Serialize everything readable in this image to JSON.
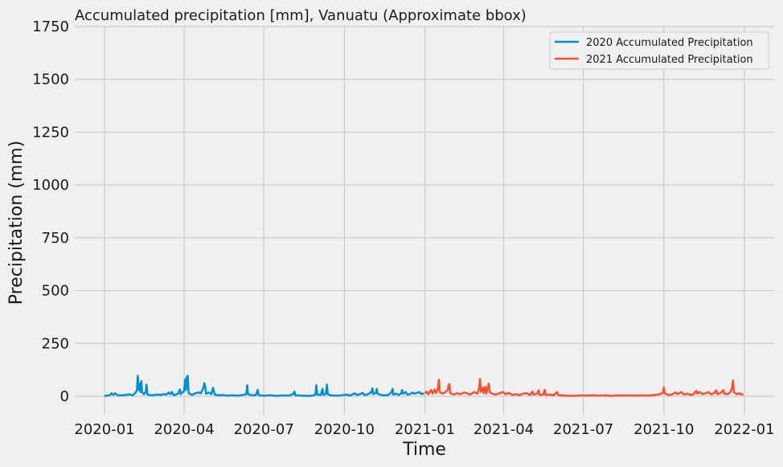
{
  "chart_data": {
    "type": "line",
    "title": "Accumulated precipitation [mm], Vanuatu (Approximate bbox)",
    "xlabel": "Time",
    "ylabel": "Precipitation (mm)",
    "ylim": [
      -87.5,
      1750
    ],
    "xlim": [
      "2019-11-28",
      "2022-02-04"
    ],
    "x_ticks": [
      "2020-01",
      "2020-04",
      "2020-07",
      "2020-10",
      "2021-01",
      "2021-04",
      "2021-07",
      "2021-10",
      "2022-01"
    ],
    "y_ticks": [
      0,
      250,
      500,
      750,
      1000,
      1250,
      1500,
      1750
    ],
    "grid": true,
    "legend_position": "top-right",
    "series": [
      {
        "name": "2020 Accumulated Precipitation",
        "color": "#008fd5",
        "points": [
          [
            "2020-01-01",
            2
          ],
          [
            "2020-01-04",
            3
          ],
          [
            "2020-01-07",
            5
          ],
          [
            "2020-01-09",
            14
          ],
          [
            "2020-01-11",
            6
          ],
          [
            "2020-01-13",
            14
          ],
          [
            "2020-01-16",
            5
          ],
          [
            "2020-01-20",
            4
          ],
          [
            "2020-01-25",
            6
          ],
          [
            "2020-01-29",
            9
          ],
          [
            "2020-02-02",
            5
          ],
          [
            "2020-02-05",
            14
          ],
          [
            "2020-02-07",
            28
          ],
          [
            "2020-02-08",
            97
          ],
          [
            "2020-02-09",
            30
          ],
          [
            "2020-02-10",
            60
          ],
          [
            "2020-02-11",
            20
          ],
          [
            "2020-02-12",
            72
          ],
          [
            "2020-02-13",
            18
          ],
          [
            "2020-02-15",
            10
          ],
          [
            "2020-02-17",
            20
          ],
          [
            "2020-02-18",
            55
          ],
          [
            "2020-02-19",
            8
          ],
          [
            "2020-02-23",
            4
          ],
          [
            "2020-02-27",
            6
          ],
          [
            "2020-03-02",
            8
          ],
          [
            "2020-03-05",
            6
          ],
          [
            "2020-03-08",
            10
          ],
          [
            "2020-03-12",
            8
          ],
          [
            "2020-03-14",
            18
          ],
          [
            "2020-03-16",
            10
          ],
          [
            "2020-03-18",
            20
          ],
          [
            "2020-03-20",
            4
          ],
          [
            "2020-03-25",
            12
          ],
          [
            "2020-03-27",
            32
          ],
          [
            "2020-03-28",
            10
          ],
          [
            "2020-03-30",
            18
          ],
          [
            "2020-04-01",
            26
          ],
          [
            "2020-04-02",
            80
          ],
          [
            "2020-04-03",
            30
          ],
          [
            "2020-04-04",
            92
          ],
          [
            "2020-04-05",
            97
          ],
          [
            "2020-04-06",
            15
          ],
          [
            "2020-04-10",
            6
          ],
          [
            "2020-04-14",
            14
          ],
          [
            "2020-04-17",
            18
          ],
          [
            "2020-04-20",
            14
          ],
          [
            "2020-04-23",
            40
          ],
          [
            "2020-04-24",
            62
          ],
          [
            "2020-04-25",
            48
          ],
          [
            "2020-04-26",
            12
          ],
          [
            "2020-04-29",
            18
          ],
          [
            "2020-05-02",
            10
          ],
          [
            "2020-05-04",
            40
          ],
          [
            "2020-05-06",
            8
          ],
          [
            "2020-05-10",
            4
          ],
          [
            "2020-05-15",
            6
          ],
          [
            "2020-05-20",
            3
          ],
          [
            "2020-05-26",
            5
          ],
          [
            "2020-06-01",
            3
          ],
          [
            "2020-06-07",
            6
          ],
          [
            "2020-06-11",
            10
          ],
          [
            "2020-06-12",
            52
          ],
          [
            "2020-06-13",
            10
          ],
          [
            "2020-06-18",
            4
          ],
          [
            "2020-06-22",
            6
          ],
          [
            "2020-06-24",
            30
          ],
          [
            "2020-06-25",
            5
          ],
          [
            "2020-07-02",
            3
          ],
          [
            "2020-07-09",
            5
          ],
          [
            "2020-07-16",
            2
          ],
          [
            "2020-07-23",
            4
          ],
          [
            "2020-07-30",
            3
          ],
          [
            "2020-08-04",
            12
          ],
          [
            "2020-08-05",
            22
          ],
          [
            "2020-08-06",
            4
          ],
          [
            "2020-08-14",
            3
          ],
          [
            "2020-08-22",
            2
          ],
          [
            "2020-08-27",
            4
          ],
          [
            "2020-08-29",
            10
          ],
          [
            "2020-08-30",
            52
          ],
          [
            "2020-08-31",
            8
          ],
          [
            "2020-09-04",
            6
          ],
          [
            "2020-09-06",
            35
          ],
          [
            "2020-09-07",
            6
          ],
          [
            "2020-09-10",
            12
          ],
          [
            "2020-09-11",
            55
          ],
          [
            "2020-09-12",
            10
          ],
          [
            "2020-09-16",
            4
          ],
          [
            "2020-09-22",
            3
          ],
          [
            "2020-09-28",
            5
          ],
          [
            "2020-10-04",
            8
          ],
          [
            "2020-10-07",
            3
          ],
          [
            "2020-10-10",
            8
          ],
          [
            "2020-10-13",
            14
          ],
          [
            "2020-10-15",
            6
          ],
          [
            "2020-10-19",
            10
          ],
          [
            "2020-10-22",
            16
          ],
          [
            "2020-10-24",
            5
          ],
          [
            "2020-10-28",
            10
          ],
          [
            "2020-11-01",
            20
          ],
          [
            "2020-11-02",
            38
          ],
          [
            "2020-11-03",
            10
          ],
          [
            "2020-11-06",
            16
          ],
          [
            "2020-11-07",
            35
          ],
          [
            "2020-11-08",
            12
          ],
          [
            "2020-11-12",
            6
          ],
          [
            "2020-11-16",
            4
          ],
          [
            "2020-11-20",
            6
          ],
          [
            "2020-11-24",
            20
          ],
          [
            "2020-11-25",
            35
          ],
          [
            "2020-11-26",
            8
          ],
          [
            "2020-11-29",
            12
          ],
          [
            "2020-12-02",
            6
          ],
          [
            "2020-12-05",
            14
          ],
          [
            "2020-12-06",
            30
          ],
          [
            "2020-12-07",
            12
          ],
          [
            "2020-12-10",
            20
          ],
          [
            "2020-12-12",
            8
          ],
          [
            "2020-12-15",
            10
          ],
          [
            "2020-12-18",
            18
          ],
          [
            "2020-12-20",
            12
          ],
          [
            "2020-12-23",
            16
          ],
          [
            "2020-12-26",
            20
          ],
          [
            "2020-12-28",
            10
          ],
          [
            "2020-12-31",
            14
          ]
        ]
      },
      {
        "name": "2021 Accumulated Precipitation",
        "color": "#fc4f30",
        "points": [
          [
            "2021-01-01",
            14
          ],
          [
            "2021-01-03",
            22
          ],
          [
            "2021-01-05",
            10
          ],
          [
            "2021-01-08",
            30
          ],
          [
            "2021-01-10",
            12
          ],
          [
            "2021-01-12",
            32
          ],
          [
            "2021-01-14",
            15
          ],
          [
            "2021-01-16",
            40
          ],
          [
            "2021-01-17",
            78
          ],
          [
            "2021-01-18",
            20
          ],
          [
            "2021-01-21",
            12
          ],
          [
            "2021-01-24",
            18
          ],
          [
            "2021-01-27",
            30
          ],
          [
            "2021-01-28",
            50
          ],
          [
            "2021-01-29",
            58
          ],
          [
            "2021-01-30",
            15
          ],
          [
            "2021-02-03",
            8
          ],
          [
            "2021-02-07",
            14
          ],
          [
            "2021-02-11",
            10
          ],
          [
            "2021-02-15",
            18
          ],
          [
            "2021-02-18",
            14
          ],
          [
            "2021-02-22",
            8
          ],
          [
            "2021-02-26",
            20
          ],
          [
            "2021-03-02",
            12
          ],
          [
            "2021-03-04",
            40
          ],
          [
            "2021-03-05",
            82
          ],
          [
            "2021-03-06",
            20
          ],
          [
            "2021-03-08",
            42
          ],
          [
            "2021-03-09",
            15
          ],
          [
            "2021-03-11",
            45
          ],
          [
            "2021-03-12",
            12
          ],
          [
            "2021-03-15",
            60
          ],
          [
            "2021-03-16",
            20
          ],
          [
            "2021-03-19",
            12
          ],
          [
            "2021-03-23",
            8
          ],
          [
            "2021-03-27",
            14
          ],
          [
            "2021-03-31",
            20
          ],
          [
            "2021-04-03",
            10
          ],
          [
            "2021-04-07",
            16
          ],
          [
            "2021-04-11",
            6
          ],
          [
            "2021-04-15",
            10
          ],
          [
            "2021-04-19",
            5
          ],
          [
            "2021-04-23",
            12
          ],
          [
            "2021-04-27",
            14
          ],
          [
            "2021-05-01",
            6
          ],
          [
            "2021-05-04",
            22
          ],
          [
            "2021-05-05",
            8
          ],
          [
            "2021-05-09",
            12
          ],
          [
            "2021-05-11",
            28
          ],
          [
            "2021-05-12",
            6
          ],
          [
            "2021-05-16",
            8
          ],
          [
            "2021-05-18",
            30
          ],
          [
            "2021-05-19",
            6
          ],
          [
            "2021-05-24",
            8
          ],
          [
            "2021-05-28",
            4
          ],
          [
            "2021-06-01",
            20
          ],
          [
            "2021-06-02",
            6
          ],
          [
            "2021-06-10",
            3
          ],
          [
            "2021-06-20",
            2
          ],
          [
            "2021-06-30",
            4
          ],
          [
            "2021-07-05",
            3
          ],
          [
            "2021-07-12",
            5
          ],
          [
            "2021-07-19",
            3
          ],
          [
            "2021-07-26",
            4
          ],
          [
            "2021-08-02",
            2
          ],
          [
            "2021-08-09",
            4
          ],
          [
            "2021-08-16",
            3
          ],
          [
            "2021-08-23",
            4
          ],
          [
            "2021-08-30",
            3
          ],
          [
            "2021-09-06",
            4
          ],
          [
            "2021-09-13",
            3
          ],
          [
            "2021-09-20",
            6
          ],
          [
            "2021-09-27",
            10
          ],
          [
            "2021-09-30",
            18
          ],
          [
            "2021-10-01",
            42
          ],
          [
            "2021-10-02",
            14
          ],
          [
            "2021-10-06",
            6
          ],
          [
            "2021-10-10",
            8
          ],
          [
            "2021-10-14",
            18
          ],
          [
            "2021-10-17",
            10
          ],
          [
            "2021-10-21",
            20
          ],
          [
            "2021-10-24",
            8
          ],
          [
            "2021-10-28",
            12
          ],
          [
            "2021-11-01",
            6
          ],
          [
            "2021-11-04",
            10
          ],
          [
            "2021-11-07",
            26
          ],
          [
            "2021-11-08",
            12
          ],
          [
            "2021-11-11",
            20
          ],
          [
            "2021-11-14",
            10
          ],
          [
            "2021-11-18",
            14
          ],
          [
            "2021-11-21",
            20
          ],
          [
            "2021-11-24",
            8
          ],
          [
            "2021-11-27",
            14
          ],
          [
            "2021-11-30",
            28
          ],
          [
            "2021-12-01",
            10
          ],
          [
            "2021-12-05",
            16
          ],
          [
            "2021-12-08",
            30
          ],
          [
            "2021-12-09",
            12
          ],
          [
            "2021-12-13",
            10
          ],
          [
            "2021-12-16",
            20
          ],
          [
            "2021-12-18",
            40
          ],
          [
            "2021-12-19",
            75
          ],
          [
            "2021-12-20",
            20
          ],
          [
            "2021-12-23",
            10
          ],
          [
            "2021-12-26",
            14
          ],
          [
            "2021-12-29",
            8
          ],
          [
            "2021-12-31",
            10
          ]
        ]
      }
    ]
  }
}
